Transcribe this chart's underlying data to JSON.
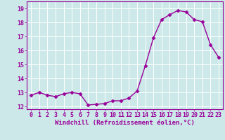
{
  "x": [
    0,
    1,
    2,
    3,
    4,
    5,
    6,
    7,
    8,
    9,
    10,
    11,
    12,
    13,
    14,
    15,
    16,
    17,
    18,
    19,
    20,
    21,
    22,
    23
  ],
  "y": [
    12.8,
    13.0,
    12.8,
    12.7,
    12.9,
    13.0,
    12.9,
    12.1,
    12.15,
    12.2,
    12.4,
    12.4,
    12.6,
    13.1,
    14.9,
    16.9,
    18.2,
    18.55,
    18.85,
    18.75,
    18.2,
    18.05,
    16.4,
    15.5
  ],
  "line_color": "#990099",
  "marker": "D",
  "markersize": 2.5,
  "linewidth": 1.0,
  "bg_color": "#cce8e8",
  "grid_color": "#ffffff",
  "xlabel": "Windchill (Refroidissement éolien,°C)",
  "xlim": [
    -0.5,
    23.5
  ],
  "ylim": [
    11.8,
    19.5
  ],
  "yticks": [
    12,
    13,
    14,
    15,
    16,
    17,
    18,
    19
  ],
  "xticks": [
    0,
    1,
    2,
    3,
    4,
    5,
    6,
    7,
    8,
    9,
    10,
    11,
    12,
    13,
    14,
    15,
    16,
    17,
    18,
    19,
    20,
    21,
    22,
    23
  ],
  "xlabel_fontsize": 6.5,
  "tick_fontsize": 6.0
}
